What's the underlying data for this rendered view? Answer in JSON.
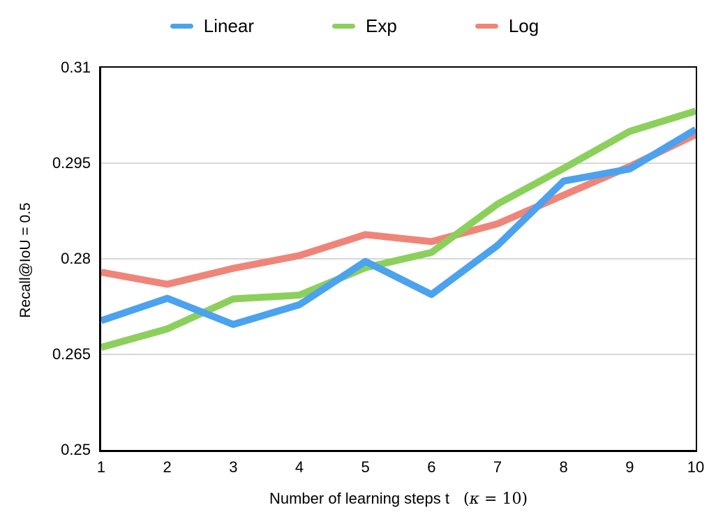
{
  "colors": {
    "axis": "#000000",
    "gridline": "#cccccc",
    "background": "#ffffff",
    "linear_blue": "#4BA2EE",
    "exp_green": "#8CD05C",
    "log_red": "#EF8579"
  },
  "legend": {
    "items": [
      "Linear",
      "Exp",
      "Log"
    ]
  },
  "axes": {
    "ylabel": "Recall@IoU = 0.5",
    "xlabel_main": "Number of learning steps t",
    "xlabel_math_open": "(",
    "xlabel_math_kappa": "κ",
    "xlabel_math_rest": " = 10)"
  },
  "chart_data": {
    "type": "line",
    "x": [
      1,
      2,
      3,
      4,
      5,
      6,
      7,
      8,
      9,
      10
    ],
    "x_tick_labels": [
      "1",
      "2",
      "3",
      "4",
      "5",
      "6",
      "7",
      "8",
      "9",
      "10"
    ],
    "y_tick_labels": [
      "0.31",
      "0.295",
      "0.28",
      "0.265",
      "0.25"
    ],
    "y_ticks": [
      0.31,
      0.295,
      0.28,
      0.265,
      0.25
    ],
    "ylim": [
      0.25,
      0.31
    ],
    "grid": true,
    "legend_position": "top",
    "ylabel": "Recall@IoU = 0.5",
    "xlabel": "Number of learning steps t (κ = 10)",
    "series": [
      {
        "name": "Linear",
        "color": "#4BA2EE",
        "values": [
          0.2703,
          0.2738,
          0.2697,
          0.2728,
          0.2796,
          0.2744,
          0.2821,
          0.2922,
          0.2941,
          0.3003
        ]
      },
      {
        "name": "Exp",
        "color": "#8CD05C",
        "values": [
          0.2661,
          0.269,
          0.2737,
          0.2743,
          0.2786,
          0.281,
          0.2886,
          0.2942,
          0.3,
          0.3032
        ]
      },
      {
        "name": "Log",
        "color": "#EF8579",
        "values": [
          0.2779,
          0.276,
          0.2785,
          0.2805,
          0.2838,
          0.2827,
          0.2855,
          0.29,
          0.2945,
          0.2995
        ]
      }
    ],
    "draw_order": [
      "Log",
      "Exp",
      "Linear"
    ],
    "line_width": 10
  }
}
